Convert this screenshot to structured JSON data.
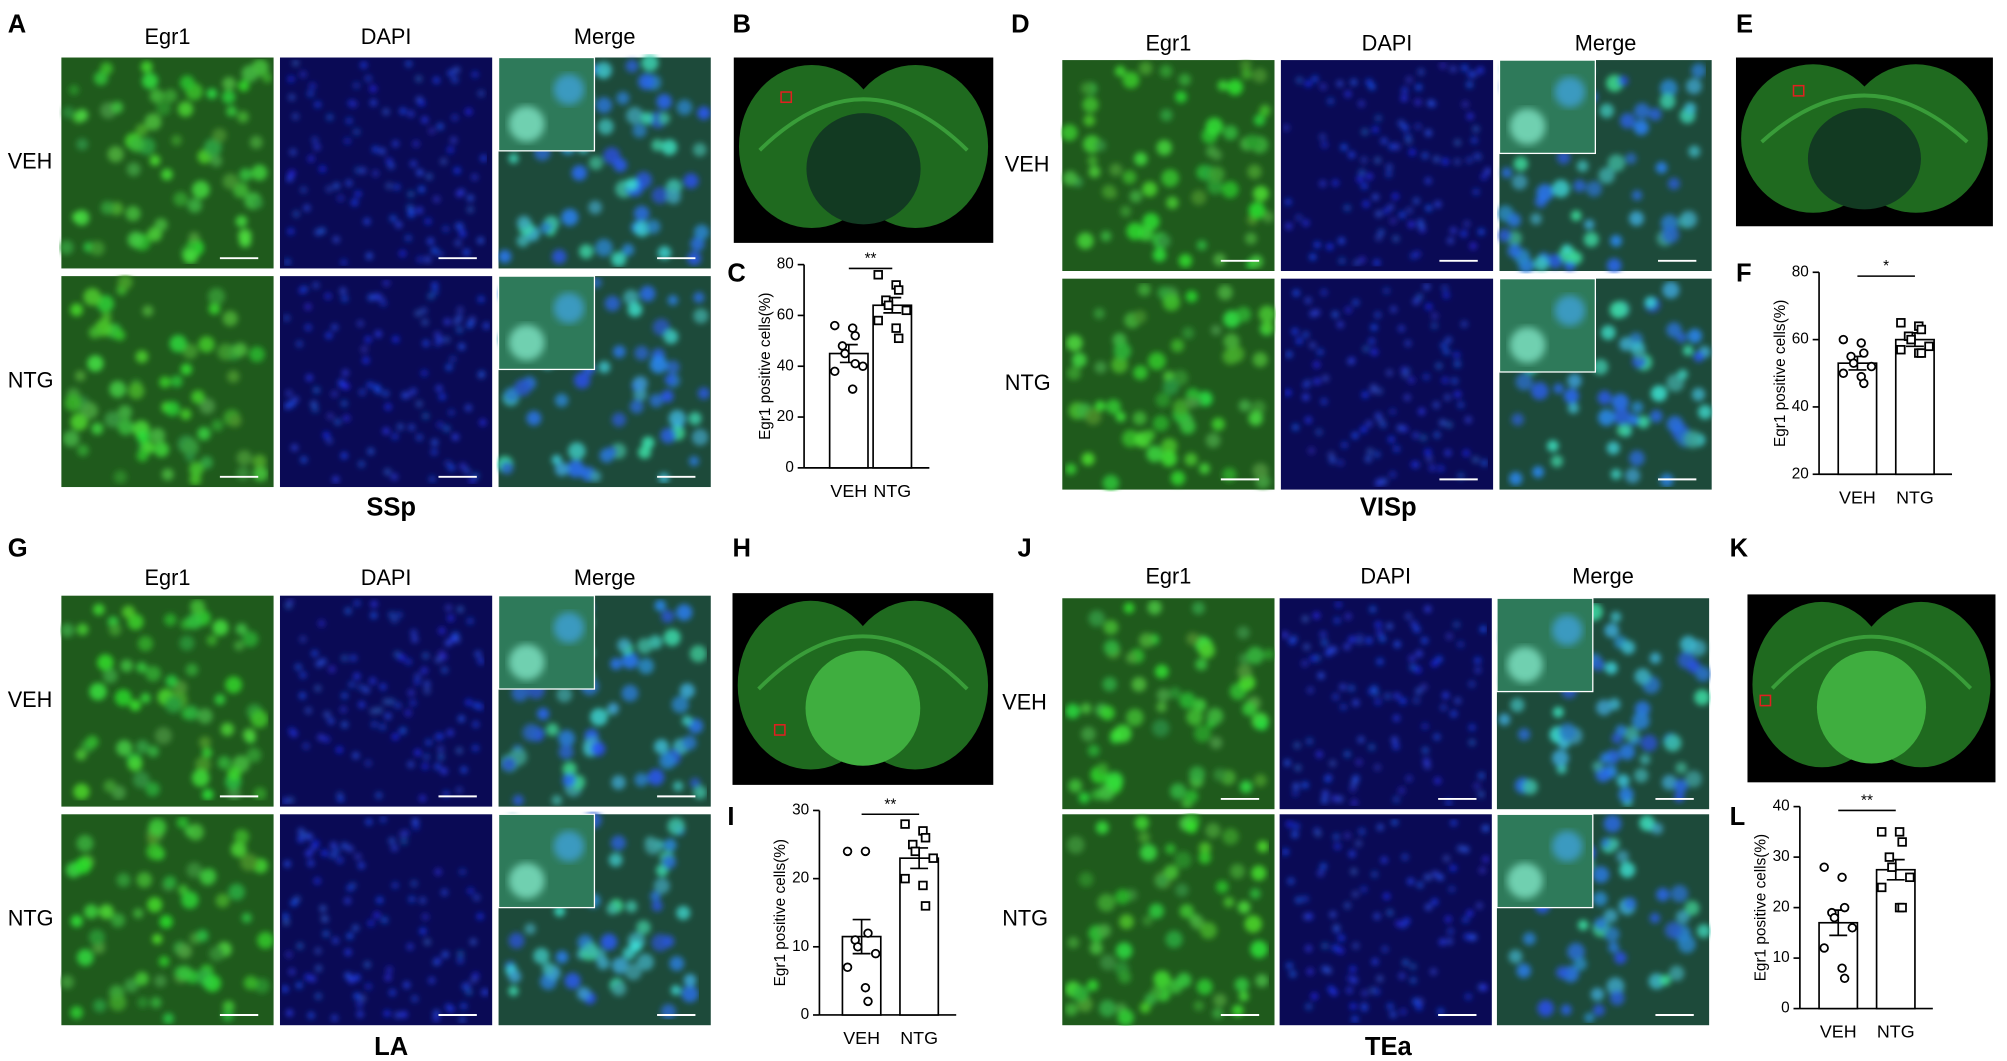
{
  "image_groups": [
    {
      "letter": "A",
      "columns": [
        "Egr1",
        "DAPI",
        "Merge"
      ],
      "rows": [
        "VEH",
        "NTG"
      ],
      "region": "SSp"
    },
    {
      "letter": "D",
      "columns": [
        "Egr1",
        "DAPI",
        "Merge"
      ],
      "rows": [
        "VEH",
        "NTG"
      ],
      "region": "VISp"
    },
    {
      "letter": "G",
      "columns": [
        "Egr1",
        "DAPI",
        "Merge"
      ],
      "rows": [
        "VEH",
        "NTG"
      ],
      "region": "LA"
    },
    {
      "letter": "J",
      "columns": [
        "Egr1",
        "DAPI",
        "Merge"
      ],
      "rows": [
        "VEH",
        "NTG"
      ],
      "region": "TEa"
    }
  ],
  "brain_panels": [
    {
      "letter": "B"
    },
    {
      "letter": "E"
    },
    {
      "letter": "H"
    },
    {
      "letter": "K"
    }
  ],
  "chart_data": [
    {
      "type": "bar",
      "letter": "C",
      "categories": [
        "VEH",
        "NTG"
      ],
      "values": [
        45,
        64
      ],
      "errors": [
        3.5,
        3
      ],
      "points": [
        [
          56,
          55,
          52,
          48,
          45,
          40,
          38,
          31,
          41
        ],
        [
          76,
          72,
          70,
          66,
          64,
          62,
          58,
          55,
          51
        ]
      ],
      "markers": [
        "circle",
        "square"
      ],
      "ylim": [
        0,
        80
      ],
      "yticks": [
        0,
        20,
        40,
        60,
        80
      ],
      "ylabel": "Egr1 positive cells(%)",
      "annotation": "**",
      "fill": "#ffffff",
      "stroke": "#000000"
    },
    {
      "type": "bar",
      "letter": "F",
      "categories": [
        "VEH",
        "NTG"
      ],
      "values": [
        53,
        60
      ],
      "errors": [
        2,
        2
      ],
      "points": [
        [
          60,
          59,
          56,
          55,
          53,
          52,
          50,
          49,
          47
        ],
        [
          65,
          64,
          63,
          61,
          60,
          58,
          57,
          56,
          56
        ]
      ],
      "markers": [
        "circle",
        "square"
      ],
      "ylim": [
        20,
        80
      ],
      "yticks": [
        20,
        40,
        60,
        80
      ],
      "ylabel": "Egr1 positive cells(%)",
      "annotation": "*",
      "fill": "#ffffff",
      "stroke": "#000000"
    },
    {
      "type": "bar",
      "letter": "I",
      "categories": [
        "VEH",
        "NTG"
      ],
      "values": [
        11.5,
        23
      ],
      "errors": [
        2.5,
        1.5
      ],
      "points": [
        [
          24,
          24,
          12,
          11,
          10,
          9,
          7,
          4,
          2
        ],
        [
          28,
          27,
          26,
          25,
          24,
          23,
          20,
          19,
          16
        ]
      ],
      "markers": [
        "circle",
        "square"
      ],
      "ylim": [
        0,
        30
      ],
      "yticks": [
        0,
        10,
        20,
        30
      ],
      "ylabel": "Egr1 positive cells(%)",
      "annotation": "**",
      "fill": "#ffffff",
      "stroke": "#000000"
    },
    {
      "type": "bar",
      "letter": "L",
      "categories": [
        "VEH",
        "NTG"
      ],
      "values": [
        17,
        27.5
      ],
      "errors": [
        2.5,
        2
      ],
      "points": [
        [
          28,
          26,
          20,
          19,
          18,
          16,
          12,
          8,
          6
        ],
        [
          35,
          35,
          33,
          30,
          28,
          26,
          24,
          20,
          20
        ]
      ],
      "markers": [
        "circle",
        "square"
      ],
      "ylim": [
        0,
        40
      ],
      "yticks": [
        0,
        10,
        20,
        30,
        40
      ],
      "ylabel": "Egr1 positive cells(%)",
      "annotation": "**",
      "fill": "#ffffff",
      "stroke": "#000000"
    }
  ]
}
